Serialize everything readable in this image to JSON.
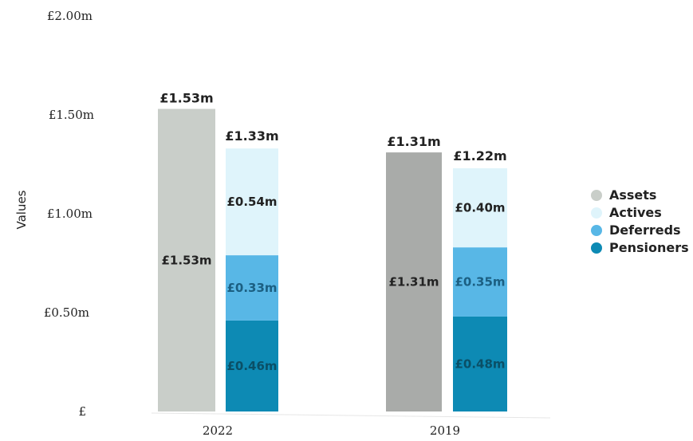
{
  "chart_data": {
    "type": "bar",
    "ylabel": "Values",
    "yticks": [
      "£2.00m",
      "£1.50m",
      "£1.00m",
      "£0.50m",
      "£"
    ],
    "ylim": [
      0,
      2.0
    ],
    "grid": false,
    "legend_position": "right",
    "legend": [
      {
        "name": "Assets",
        "color": "#c9cec9"
      },
      {
        "name": "Actives",
        "color": "#dff4fb"
      },
      {
        "name": "Deferreds",
        "color": "#58b7e6"
      },
      {
        "name": "Pensioners",
        "color": "#0d8ab4"
      }
    ],
    "groups": [
      {
        "category": "2022",
        "assets": {
          "value": 1.53,
          "label": "£1.53m",
          "total_label": "£1.53m",
          "color": "#c9cec9"
        },
        "liabilities": {
          "total_label": "£1.33m",
          "segments": [
            {
              "name": "Pensioners",
              "value": 0.46,
              "label": "£0.46m",
              "color": "#0d8ab4"
            },
            {
              "name": "Deferreds",
              "value": 0.33,
              "label": "£0.33m",
              "color": "#58b7e6"
            },
            {
              "name": "Actives",
              "value": 0.54,
              "label": "£0.54m",
              "color": "#dff4fb"
            }
          ]
        }
      },
      {
        "category": "2019",
        "assets": {
          "value": 1.31,
          "label": "£1.31m",
          "total_label": "£1.31m",
          "color": "#a9aba9"
        },
        "liabilities": {
          "total_label": "£1.22m",
          "segments": [
            {
              "name": "Pensioners",
              "value": 0.48,
              "label": "£0.48m",
              "color": "#0d8ab4"
            },
            {
              "name": "Deferreds",
              "value": 0.35,
              "label": "£0.35m",
              "color": "#58b7e6"
            },
            {
              "name": "Actives",
              "value": 0.4,
              "label": "£0.40m",
              "color": "#dff4fb"
            }
          ]
        }
      }
    ]
  }
}
